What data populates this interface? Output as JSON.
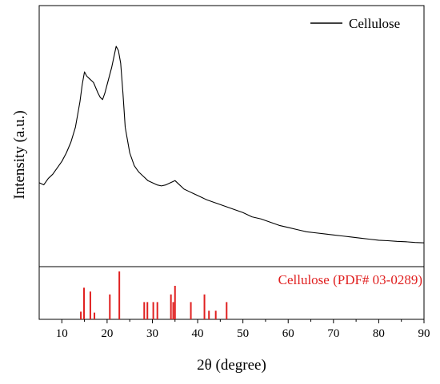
{
  "chart_data": [
    {
      "type": "line",
      "series": [
        {
          "name": "Cellulose",
          "color": "#000000",
          "x": [
            5,
            6,
            7,
            8,
            9,
            10,
            11,
            12,
            13,
            14,
            14.5,
            15,
            15.5,
            16,
            17,
            18,
            18.5,
            19,
            19.5,
            20,
            21,
            21.5,
            22,
            22.5,
            23,
            23.5,
            24,
            25,
            26,
            27,
            28,
            29,
            30,
            31,
            32,
            33,
            34,
            35,
            36,
            37,
            38,
            39,
            40,
            42,
            44,
            46,
            48,
            50,
            52,
            54,
            56,
            58,
            60,
            62,
            64,
            66,
            68,
            70,
            72,
            74,
            76,
            78,
            80,
            82,
            84,
            86,
            88,
            90
          ],
          "y": [
            0.36,
            0.35,
            0.38,
            0.4,
            0.43,
            0.46,
            0.5,
            0.55,
            0.62,
            0.74,
            0.82,
            0.88,
            0.86,
            0.85,
            0.83,
            0.78,
            0.76,
            0.75,
            0.78,
            0.82,
            0.9,
            0.95,
            1.0,
            0.98,
            0.92,
            0.78,
            0.62,
            0.5,
            0.44,
            0.41,
            0.39,
            0.37,
            0.36,
            0.35,
            0.345,
            0.35,
            0.36,
            0.37,
            0.35,
            0.33,
            0.32,
            0.31,
            0.3,
            0.28,
            0.265,
            0.25,
            0.235,
            0.22,
            0.2,
            0.19,
            0.175,
            0.16,
            0.15,
            0.14,
            0.13,
            0.125,
            0.12,
            0.115,
            0.11,
            0.105,
            0.1,
            0.095,
            0.09,
            0.088,
            0.085,
            0.083,
            0.08,
            0.078
          ]
        }
      ],
      "xlim": [
        5,
        90
      ],
      "ylim": [
        0,
        1.1
      ],
      "ylabel": "Intensity (a.u.)",
      "legend": {
        "position": "top-right",
        "entry": "Cellulose"
      },
      "grid": false
    },
    {
      "type": "bar",
      "subtype": "reference-stick-pattern",
      "label": "Cellulose (PDF# 03-0289)",
      "color": "#e02020",
      "x": [
        14.2,
        14.9,
        16.3,
        17.2,
        20.6,
        22.7,
        28.2,
        28.9,
        30.2,
        31.1,
        34.1,
        34.6,
        35.0,
        38.5,
        41.5,
        42.5,
        44.0,
        46.4
      ],
      "intensity": [
        0.16,
        0.66,
        0.58,
        0.14,
        0.52,
        1.0,
        0.36,
        0.36,
        0.36,
        0.36,
        0.52,
        0.36,
        0.7,
        0.36,
        0.52,
        0.18,
        0.18,
        0.36
      ],
      "xlim": [
        5,
        90
      ],
      "xticks": [
        10,
        20,
        30,
        40,
        50,
        60,
        70,
        80,
        90
      ],
      "xlabel": "2θ (degree)"
    }
  ]
}
